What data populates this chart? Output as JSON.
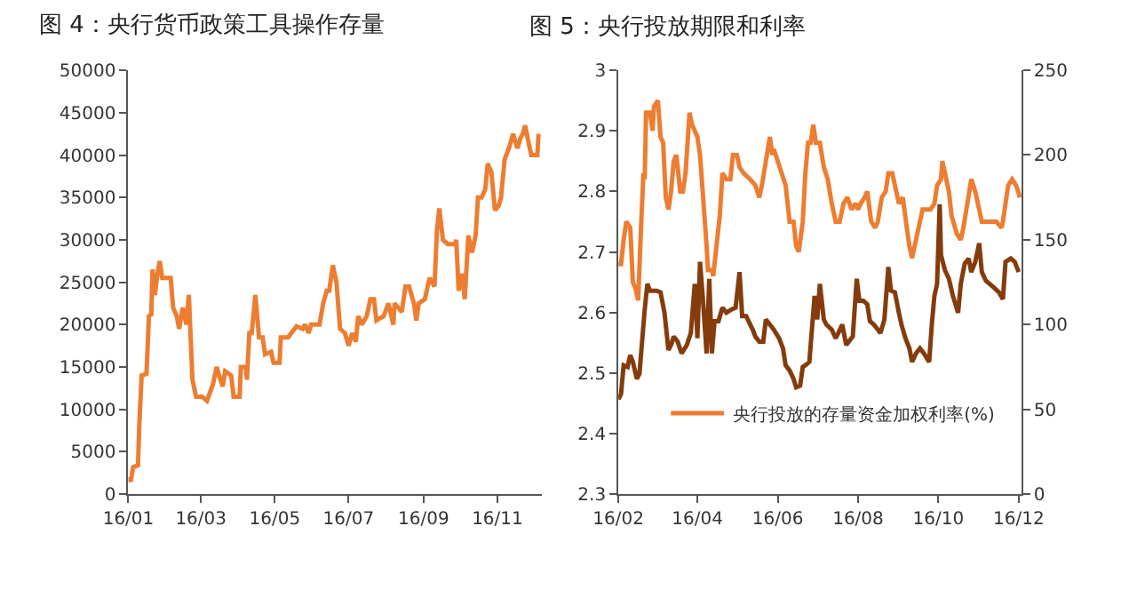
{
  "chart_data": [
    {
      "type": "line",
      "title": "图 4：央行货币政策工具操作存量",
      "legend": false,
      "xlim": [
        "--01-01",
        "--12-08"
      ],
      "xticks": [
        {
          "value": "--01-01",
          "label": "16/01"
        },
        {
          "value": "--03-01",
          "label": "16/03"
        },
        {
          "value": "--05-01",
          "label": "16/05"
        },
        {
          "value": "--07-01",
          "label": "16/07"
        },
        {
          "value": "--09-01",
          "label": "16/09"
        },
        {
          "value": "--11-01",
          "label": "16/11"
        }
      ],
      "ylim": [
        0,
        50000
      ],
      "yticks": [
        0,
        5000,
        10000,
        15000,
        20000,
        25000,
        30000,
        35000,
        40000,
        45000,
        50000
      ],
      "series": [
        {
          "color": "#ed7d31",
          "x": [
            "--01-01",
            "--01-03",
            "--01-05",
            "--01-09",
            "--01-10",
            "--01-12",
            "--01-16",
            "--01-17",
            "--01-18",
            "--01-20",
            "--01-21",
            "--01-23",
            "--01-25",
            "--01-27",
            "--01-29",
            "--02-05",
            "--02-07",
            "--02-10",
            "--02-12",
            "--02-15",
            "--02-18",
            "--02-20",
            "--02-23",
            "--02-26",
            "--03-02",
            "--03-06",
            "--03-11",
            "--03-14",
            "--03-16",
            "--03-19",
            "--03-21",
            "--03-26",
            "--03-28",
            "--04-02",
            "--04-03",
            "--04-07",
            "--04-08",
            "--04-10",
            "--04-12",
            "--04-15",
            "--04-18",
            "--04-21",
            "--04-23",
            "--04-28",
            "--04-30",
            "--05-05",
            "--05-06",
            "--05-12",
            "--05-19",
            "--05-24",
            "--05-26",
            "--05-29",
            "--05-31",
            "--06-07",
            "--06-10",
            "--06-13",
            "--06-15",
            "--06-18",
            "--06-21",
            "--06-24",
            "--06-28",
            "--07-01",
            "--07-04",
            "--07-07",
            "--07-09",
            "--07-12",
            "--07-16",
            "--07-19",
            "--07-22",
            "--07-24",
            "--07-30",
            "--08-03",
            "--08-07",
            "--08-08",
            "--08-14",
            "--08-17",
            "--08-20",
            "--08-24",
            "--08-26",
            "--08-28",
            "--09-02",
            "--09-06",
            "--09-10",
            "--09-12",
            "--09-14",
            "--09-17",
            "--09-21",
            "--09-27",
            "--09-28",
            "--09-30",
            "--10-03",
            "--10-05",
            "--10-08",
            "--10-11",
            "--10-14",
            "--10-16",
            "--10-19",
            "--10-22",
            "--10-24",
            "--10-27",
            "--10-30",
            "--11-02",
            "--11-04",
            "--11-07",
            "--11-11",
            "--11-14",
            "--11-17",
            "--11-18",
            "--11-20",
            "--11-22",
            "--11-24",
            "--11-26",
            "--11-29",
            "--12-04",
            "--12-05"
          ],
          "values": [
            2000,
            1500,
            3200,
            3400,
            8000,
            14000,
            14200,
            17500,
            21000,
            21200,
            26500,
            23500,
            26000,
            27500,
            25500,
            25500,
            22000,
            21000,
            19500,
            22000,
            20000,
            23500,
            13500,
            11500,
            11500,
            11000,
            13000,
            15000,
            14000,
            12700,
            14500,
            14000,
            11500,
            11500,
            15000,
            15000,
            13500,
            19000,
            19000,
            23500,
            18500,
            18500,
            16500,
            16800,
            15500,
            15500,
            18500,
            18500,
            19800,
            19500,
            20000,
            19000,
            20000,
            20000,
            22500,
            24000,
            24000,
            27000,
            25000,
            19500,
            19000,
            17500,
            19000,
            18000,
            21000,
            20000,
            21000,
            23000,
            23000,
            20500,
            21000,
            22500,
            20000,
            22500,
            21500,
            24500,
            24500,
            22500,
            20500,
            22500,
            23000,
            25500,
            24500,
            31000,
            33700,
            30000,
            29500,
            29500,
            30000,
            24000,
            26000,
            23000,
            30500,
            28500,
            30500,
            35000,
            35000,
            36000,
            39000,
            38000,
            33500,
            34000,
            35000,
            39500,
            41000,
            42500,
            41000,
            41000,
            42000,
            42500,
            43500,
            42000,
            40000,
            40000,
            42500
          ]
        }
      ]
    },
    {
      "type": "line",
      "title": "图 5：央行投放期限和利率",
      "legend": "bottom left",
      "xlim": [
        "--02-01",
        "--12-03"
      ],
      "xticks": [
        {
          "value": "--02-01",
          "label": "16/02"
        },
        {
          "value": "--04-01",
          "label": "16/04"
        },
        {
          "value": "--06-01",
          "label": "16/06"
        },
        {
          "value": "--08-01",
          "label": "16/08"
        },
        {
          "value": "--10-01",
          "label": "16/10"
        },
        {
          "value": "--12-01",
          "label": "16/12"
        }
      ],
      "ylim": [
        2.3,
        3
      ],
      "yticks": [
        2.3,
        2.4,
        2.5,
        2.6,
        2.7,
        2.8,
        2.9,
        3
      ],
      "y2lim": [
        0,
        250
      ],
      "y2ticks": [
        0,
        50,
        100,
        150,
        200,
        250
      ],
      "series": [
        {
          "name": "央行投放的存量资金加权利率(%)",
          "color": "#ed7d31",
          "x": [
            "--02-01",
            "--02-03",
            "--02-05",
            "--02-07",
            "--02-10",
            "--02-12",
            "--02-14",
            "--02-16",
            "--02-18",
            "--02-20",
            "--02-21",
            "--02-22",
            "--02-25",
            "--02-27",
            "--02-28",
            "--03-02",
            "--03-04",
            "--03-06",
            "--03-08",
            "--03-10",
            "--03-12",
            "--03-14",
            "--03-16",
            "--03-19",
            "--03-21",
            "--03-23",
            "--03-26",
            "--03-28",
            "--04-01",
            "--04-03",
            "--04-05",
            "--04-08",
            "--04-09",
            "--04-12",
            "--04-13",
            "--04-15",
            "--04-18",
            "--04-20",
            "--04-23",
            "--04-26",
            "--04-28",
            "--05-01",
            "--05-03",
            "--05-06",
            "--05-11",
            "--05-15",
            "--05-18",
            "--05-20",
            "--05-23",
            "--05-26",
            "--05-28",
            "--05-29",
            "--06-01",
            "--06-04",
            "--06-07",
            "--06-10",
            "--06-13",
            "--06-15",
            "--06-17",
            "--06-20",
            "--06-22",
            "--06-24",
            "--06-26",
            "--06-28",
            "--06-30",
            "--07-03",
            "--07-06",
            "--07-09",
            "--07-12",
            "--07-15",
            "--07-18",
            "--07-21",
            "--07-24",
            "--07-27",
            "--07-30",
            "--08-01",
            "--08-03",
            "--08-06",
            "--08-08",
            "--08-11",
            "--08-14",
            "--08-16",
            "--08-19",
            "--08-22",
            "--08-24",
            "--08-27",
            "--08-30",
            "--09-01",
            "--09-04",
            "--09-07",
            "--09-09",
            "--09-11",
            "--09-14",
            "--09-17",
            "--09-19",
            "--09-23",
            "--09-25",
            "--09-28",
            "--09-30",
            "--10-03",
            "--10-04",
            "--10-06",
            "--10-09",
            "--10-11",
            "--10-15",
            "--10-18",
            "--10-20",
            "--10-23",
            "--10-26",
            "--10-29",
            "--11-01",
            "--11-03",
            "--11-07",
            "--11-11",
            "--11-14",
            "--11-18",
            "--11-19",
            "--11-23",
            "--11-26",
            "--11-29",
            "--12-02"
          ],
          "values": [
            2.68,
            2.68,
            2.72,
            2.75,
            2.74,
            2.65,
            2.64,
            2.62,
            2.73,
            2.83,
            2.82,
            2.93,
            2.93,
            2.9,
            2.94,
            2.95,
            2.89,
            2.88,
            2.79,
            2.77,
            2.8,
            2.85,
            2.86,
            2.8,
            2.8,
            2.83,
            2.93,
            2.91,
            2.89,
            2.86,
            2.8,
            2.71,
            2.67,
            2.67,
            2.66,
            2.7,
            2.76,
            2.83,
            2.82,
            2.82,
            2.86,
            2.86,
            2.84,
            2.83,
            2.82,
            2.81,
            2.79,
            2.81,
            2.85,
            2.89,
            2.86,
            2.87,
            2.85,
            2.83,
            2.81,
            2.75,
            2.75,
            2.71,
            2.7,
            2.75,
            2.83,
            2.88,
            2.88,
            2.91,
            2.88,
            2.88,
            2.84,
            2.82,
            2.78,
            2.75,
            2.75,
            2.78,
            2.79,
            2.77,
            2.78,
            2.77,
            2.78,
            2.79,
            2.8,
            2.75,
            2.74,
            2.75,
            2.79,
            2.8,
            2.83,
            2.83,
            2.8,
            2.78,
            2.79,
            2.74,
            2.71,
            2.69,
            2.72,
            2.75,
            2.77,
            2.77,
            2.77,
            2.78,
            2.81,
            2.82,
            2.85,
            2.83,
            2.8,
            2.76,
            2.73,
            2.72,
            2.74,
            2.78,
            2.82,
            2.8,
            2.77,
            2.75,
            2.75,
            2.75,
            2.75,
            2.74,
            2.75,
            2.81,
            2.82,
            2.81,
            2.79
          ]
        },
        {
          "color": "#843c0c",
          "axis": "y2",
          "x": [
            "--02-01",
            "--02-03",
            "--02-05",
            "--02-08",
            "--02-10",
            "--02-12",
            "--02-15",
            "--02-17",
            "--02-19",
            "--02-21",
            "--02-23",
            "--02-25",
            "--03-01",
            "--03-04",
            "--03-07",
            "--03-10",
            "--03-12",
            "--03-14",
            "--03-17",
            "--03-20",
            "--03-24",
            "--03-27",
            "--03-30",
            "--04-01",
            "--04-03",
            "--04-05",
            "--04-08",
            "--04-10",
            "--04-12",
            "--04-14",
            "--04-17",
            "--04-20",
            "--04-23",
            "--04-27",
            "--04-30",
            "--05-03",
            "--05-05",
            "--05-08",
            "--05-13",
            "--05-15",
            "--05-18",
            "--05-21",
            "--05-23",
            "--05-26",
            "--05-29",
            "--06-02",
            "--06-05",
            "--06-07",
            "--06-10",
            "--06-13",
            "--06-15",
            "--06-18",
            "--06-20",
            "--06-22",
            "--06-25",
            "--06-29",
            "--07-01",
            "--07-03",
            "--07-06",
            "--07-08",
            "--07-12",
            "--07-15",
            "--07-17",
            "--07-20",
            "--07-23",
            "--07-25",
            "--07-28",
            "--07-31",
            "--08-02",
            "--08-05",
            "--08-08",
            "--08-10",
            "--08-13",
            "--08-16",
            "--08-18",
            "--08-21",
            "--08-24",
            "--08-26",
            "--08-29",
            "--09-01",
            "--09-03",
            "--09-06",
            "--09-09",
            "--09-11",
            "--09-14",
            "--09-17",
            "--09-20",
            "--09-24",
            "--09-26",
            "--09-28",
            "--09-30",
            "--10-02",
            "--10-03",
            "--10-06",
            "--10-09",
            "--10-12",
            "--10-16",
            "--10-18",
            "--10-21",
            "--10-24",
            "--10-26",
            "--10-29",
            "--11-01",
            "--11-03",
            "--11-06",
            "--11-09",
            "--11-12",
            "--11-16",
            "--11-19",
            "--11-21",
            "--11-25",
            "--11-28",
            "--12-01"
          ],
          "values": [
            56,
            59,
            76,
            75,
            82,
            78,
            68,
            71,
            90,
            109,
            124,
            120,
            120,
            119,
            107,
            85,
            88,
            93,
            90,
            83,
            88,
            95,
            124,
            92,
            137,
            117,
            83,
            127,
            83,
            102,
            102,
            110,
            107,
            109,
            110,
            131,
            105,
            105,
            97,
            93,
            90,
            90,
            103,
            100,
            97,
            92,
            86,
            76,
            73,
            68,
            63,
            64,
            75,
            76,
            78,
            117,
            103,
            124,
            103,
            100,
            97,
            92,
            95,
            100,
            88,
            90,
            93,
            127,
            114,
            114,
            112,
            102,
            100,
            97,
            95,
            103,
            134,
            120,
            119,
            107,
            100,
            92,
            86,
            78,
            83,
            86,
            83,
            78,
            100,
            117,
            124,
            171,
            141,
            132,
            127,
            117,
            107,
            124,
            136,
            139,
            131,
            137,
            148,
            131,
            126,
            124,
            122,
            119,
            115,
            137,
            139,
            137,
            131
          ]
        }
      ]
    }
  ]
}
